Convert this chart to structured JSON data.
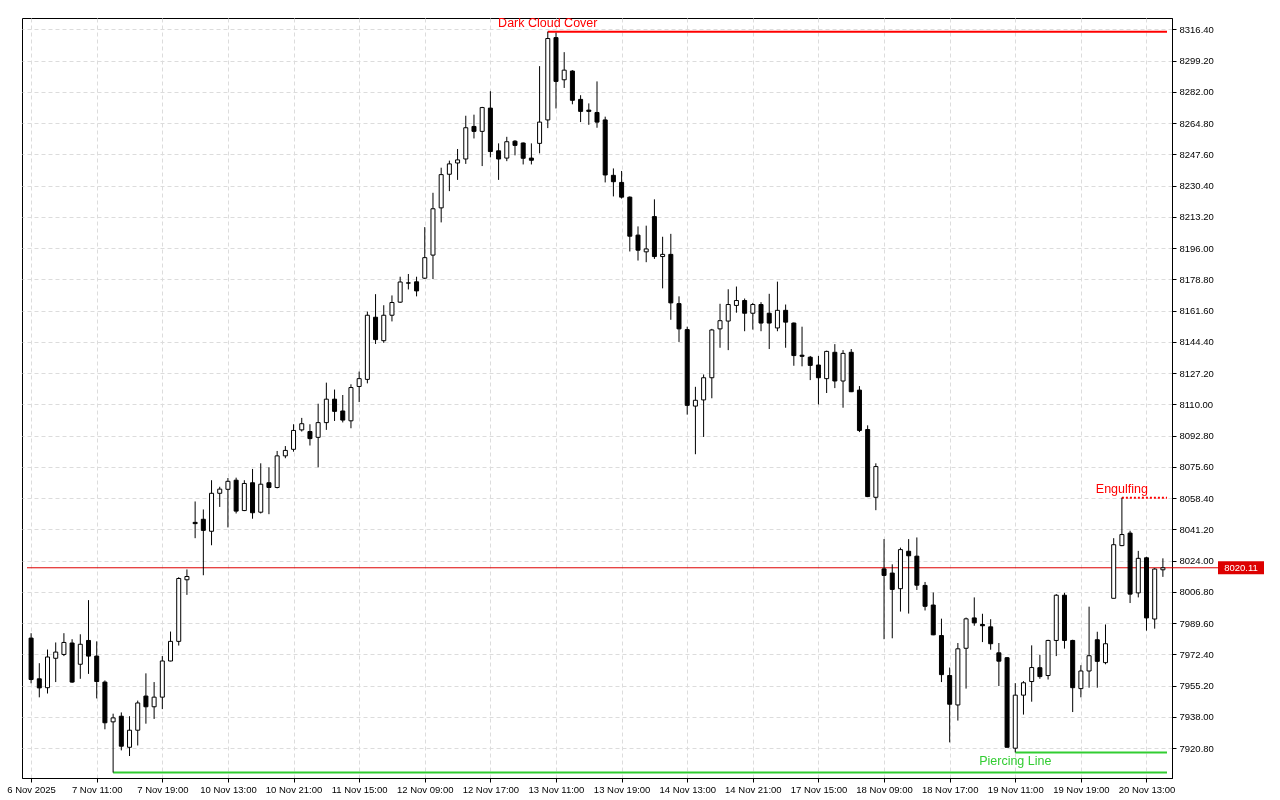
{
  "chart_data": {
    "type": "candlestick",
    "categories": [
      "6 Nov 2025",
      null,
      null,
      null,
      null,
      null,
      null,
      null,
      "7 Nov 11:00",
      null,
      null,
      null,
      null,
      null,
      null,
      null,
      "7 Nov 19:00",
      null,
      null,
      null,
      null,
      null,
      null,
      null,
      "10 Nov 13:00",
      null,
      null,
      null,
      null,
      null,
      null,
      null,
      "10 Nov 21:00",
      null,
      null,
      null,
      null,
      null,
      null,
      null,
      "11 Nov 15:00",
      null,
      null,
      null,
      null,
      null,
      null,
      null,
      "12 Nov 09:00",
      null,
      null,
      null,
      null,
      null,
      null,
      null,
      "12 Nov 17:00",
      null,
      null,
      null,
      null,
      null,
      null,
      null,
      "13 Nov 11:00",
      null,
      null,
      null,
      null,
      null,
      null,
      null,
      "13 Nov 19:00",
      null,
      null,
      null,
      null,
      null,
      null,
      null,
      "14 Nov 13:00",
      null,
      null,
      null,
      null,
      null,
      null,
      null,
      "14 Nov 21:00",
      null,
      null,
      null,
      null,
      null,
      null,
      null,
      "17 Nov 15:00",
      null,
      null,
      null,
      null,
      null,
      null,
      null,
      "18 Nov 09:00",
      null,
      null,
      null,
      null,
      null,
      null,
      null,
      "18 Nov 17:00",
      null,
      null,
      null,
      null,
      null,
      null,
      null,
      "19 Nov 11:00",
      null,
      null,
      null,
      null,
      null,
      null,
      null,
      "19 Nov 19:00",
      null,
      null,
      null,
      null,
      null,
      null,
      null,
      "20 Nov 13:00",
      null,
      null
    ],
    "ohlc": [
      [
        7981.4,
        7984.1,
        7956.5,
        7958.6
      ],
      [
        7959.0,
        7967.6,
        7948.8,
        7954.0
      ],
      [
        7954.1,
        7975.1,
        7950.9,
        7971.0
      ],
      [
        7970.3,
        7979.0,
        7957.2,
        7973.7
      ],
      [
        7972.4,
        7984.1,
        7971.5,
        7979.0
      ],
      [
        7978.7,
        7980.8,
        7956.8,
        7957.2
      ],
      [
        7967.0,
        7983.5,
        7959.0,
        7978.0
      ],
      [
        7980.1,
        8002.3,
        7961.7,
        7971.5
      ],
      [
        7971.5,
        7979.6,
        7948.2,
        7957.5
      ],
      [
        7957.2,
        7958.1,
        7931.2,
        7934.8
      ],
      [
        7935.3,
        7939.8,
        7907.4,
        7937.5
      ],
      [
        7938.4,
        7940.5,
        7919.6,
        7921.9
      ],
      [
        7921.3,
        7938.4,
        7916.5,
        7930.7
      ],
      [
        7930.7,
        7947.0,
        7922.3,
        7945.7
      ],
      [
        7949.5,
        7962.0,
        7934.3,
        7943.6
      ],
      [
        7943.6,
        7957.2,
        7936.9,
        7948.9
      ],
      [
        7948.9,
        7971.5,
        7942.3,
        7968.8
      ],
      [
        7968.8,
        7985.0,
        7968.6,
        7979.6
      ],
      [
        7979.6,
        8014.9,
        7977.3,
        8014.2
      ],
      [
        8013.5,
        8019.2,
        8005.2,
        8015.3
      ],
      [
        8045.1,
        8056.6,
        8036.4,
        8044.4
      ],
      [
        8046.8,
        8052.2,
        8016.0,
        8040.7
      ],
      [
        8040.2,
        8068.3,
        8032.5,
        8061.1
      ],
      [
        8061.1,
        8064.7,
        8053.6,
        8063.4
      ],
      [
        8063.3,
        8069.5,
        8042.3,
        8067.7
      ],
      [
        8068.3,
        8069.7,
        8050.0,
        8051.3
      ],
      [
        8051.6,
        8068.3,
        8051.3,
        8066.5
      ],
      [
        8066.9,
        8074.5,
        8047.1,
        8050.4
      ],
      [
        8050.7,
        8077.6,
        8050.0,
        8066.1
      ],
      [
        8066.9,
        8075.4,
        8049.6,
        8064.3
      ],
      [
        8064.3,
        8084.4,
        8063.8,
        8081.7
      ],
      [
        8081.7,
        8087.1,
        8080.4,
        8084.7
      ],
      [
        8085.3,
        8099.1,
        8084.0,
        8095.7
      ],
      [
        8096.0,
        8102.6,
        8095.1,
        8099.4
      ],
      [
        8095.1,
        8099.1,
        8087.4,
        8091.2
      ],
      [
        8091.9,
        8110.4,
        8075.4,
        8100.0
      ],
      [
        8100.0,
        8122.0,
        8096.0,
        8112.9
      ],
      [
        8112.9,
        8118.2,
        8100.9,
        8106.2
      ],
      [
        8106.4,
        8115.2,
        8100.1,
        8101.4
      ],
      [
        8101.0,
        8121.1,
        8096.9,
        8119.3
      ],
      [
        8119.9,
        8128.1,
        8111.3,
        8124.2
      ],
      [
        8123.8,
        8161.1,
        8121.6,
        8159.1
      ],
      [
        8158.0,
        8170.7,
        8143.3,
        8145.7
      ],
      [
        8145.1,
        8164.6,
        8143.9,
        8159.1
      ],
      [
        8159.1,
        8170.0,
        8155.7,
        8166.1
      ],
      [
        8166.3,
        8180.3,
        8165.9,
        8177.4
      ],
      [
        8176.9,
        8181.8,
        8173.3,
        8176.8
      ],
      [
        8177.5,
        8180.3,
        8169.5,
        8172.5
      ],
      [
        8179.5,
        8207.6,
        8179.0,
        8190.8
      ],
      [
        8192.2,
        8226.5,
        8179.0,
        8217.7
      ],
      [
        8218.2,
        8240.3,
        8210.2,
        8236.5
      ],
      [
        8236.7,
        8244.2,
        8227.4,
        8242.4
      ],
      [
        8242.9,
        8250.6,
        8233.6,
        8244.6
      ],
      [
        8245.1,
        8268.9,
        8242.4,
        8262.3
      ],
      [
        8263.0,
        8269.5,
        8256.4,
        8260.3
      ],
      [
        8260.3,
        8273.8,
        8241.2,
        8273.4
      ],
      [
        8273.1,
        8282.4,
        8246.0,
        8249.2
      ],
      [
        8249.6,
        8253.7,
        8233.6,
        8245.1
      ],
      [
        8245.6,
        8257.3,
        8243.9,
        8254.6
      ],
      [
        8254.9,
        8255.5,
        8247.1,
        8252.6
      ],
      [
        8253.9,
        8254.2,
        8242.1,
        8245.5
      ],
      [
        8245.6,
        8253.7,
        8242.1,
        8244.4
      ],
      [
        8253.7,
        8296.2,
        8248.2,
        8265.4
      ],
      [
        8266.6,
        8315.2,
        8262.1,
        8311.4
      ],
      [
        8311.9,
        8314.6,
        8272.9,
        8287.8
      ],
      [
        8288.7,
        8303.9,
        8284.2,
        8294.0
      ],
      [
        8293.5,
        8294.0,
        8275.2,
        8277.4
      ],
      [
        8277.9,
        8280.2,
        8265.4,
        8271.3
      ],
      [
        8272.0,
        8275.7,
        8263.9,
        8271.3
      ],
      [
        8270.7,
        8287.8,
        8262.3,
        8265.4
      ],
      [
        8266.6,
        8268.4,
        8232.2,
        8236.3
      ],
      [
        8236.1,
        8239.9,
        8224.5,
        8232.6
      ],
      [
        8232.2,
        8238.5,
        8223.3,
        8224.1
      ],
      [
        8224.1,
        8224.5,
        8194.2,
        8202.6
      ],
      [
        8203.2,
        8208.0,
        8189.2,
        8194.9
      ],
      [
        8194.0,
        8208.4,
        8188.3,
        8195.6
      ],
      [
        8213.4,
        8222.9,
        8190.1,
        8191.4
      ],
      [
        8191.4,
        8202.3,
        8173.9,
        8192.6
      ],
      [
        8192.6,
        8203.9,
        8156.6,
        8165.9
      ],
      [
        8165.5,
        8169.5,
        8144.4,
        8151.6
      ],
      [
        8151.2,
        8152.8,
        8104.4,
        8109.5
      ],
      [
        8109.1,
        8119.7,
        8082.6,
        8112.3
      ],
      [
        8112.5,
        8126.5,
        8092.1,
        8124.7
      ],
      [
        8124.7,
        8151.6,
        8113.4,
        8151.0
      ],
      [
        8151.6,
        8165.4,
        8141.2,
        8156.1
      ],
      [
        8155.9,
        8173.4,
        8139.9,
        8165.0
      ],
      [
        8164.5,
        8174.9,
        8160.5,
        8167.2
      ],
      [
        8167.2,
        8168.3,
        8150.3,
        8160.2
      ],
      [
        8160.2,
        8165.9,
        8151.2,
        8165.0
      ],
      [
        8165.0,
        8166.3,
        8150.3,
        8154.8
      ],
      [
        8160.2,
        8170.9,
        8140.5,
        8154.8
      ],
      [
        8152.1,
        8177.6,
        8150.3,
        8161.8
      ],
      [
        8161.8,
        8165.0,
        8141.2,
        8155.3
      ],
      [
        8154.8,
        8155.1,
        8131.3,
        8136.9
      ],
      [
        8137.1,
        8152.8,
        8131.0,
        8136.5
      ],
      [
        8136.0,
        8136.7,
        8123.4,
        8131.5
      ],
      [
        8131.7,
        8136.7,
        8110.0,
        8124.7
      ],
      [
        8124.2,
        8139.6,
        8116.3,
        8139.2
      ],
      [
        8138.7,
        8143.2,
        8119.0,
        8122.9
      ],
      [
        8122.9,
        8139.9,
        8108.2,
        8138.1
      ],
      [
        8138.7,
        8140.5,
        8116.8,
        8117.0
      ],
      [
        8117.9,
        8120.1,
        8094.8,
        8095.7
      ],
      [
        8096.2,
        8098.5,
        8059.0,
        8059.3
      ],
      [
        8058.9,
        8077.6,
        8051.8,
        8075.8
      ],
      [
        8019.5,
        8035.9,
        7980.8,
        8015.9
      ],
      [
        8017.2,
        8022.0,
        7981.3,
        8008.2
      ],
      [
        8008.6,
        8031.2,
        7996.0,
        8030.1
      ],
      [
        8029.2,
        8035.9,
        7994.9,
        8026.7
      ],
      [
        8026.5,
        8036.8,
        8007.9,
        8010.5
      ],
      [
        8010.4,
        8012.3,
        7996.6,
        7998.9
      ],
      [
        7999.6,
        8006.5,
        7983.0,
        7983.2
      ],
      [
        7982.8,
        7992.1,
        7957.2,
        7961.3
      ],
      [
        7960.8,
        7965.2,
        7924.0,
        7945.0
      ],
      [
        7944.6,
        7978.7,
        7936.0,
        7975.5
      ],
      [
        7975.8,
        7992.7,
        7953.6,
        7992.0
      ],
      [
        7992.5,
        8003.8,
        7988.2,
        7989.8
      ],
      [
        7988.9,
        7994.8,
        7979.2,
        7988.2
      ],
      [
        7987.6,
        7991.8,
        7975.0,
        7978.3
      ],
      [
        7973.3,
        7978.7,
        7955.0,
        7968.7
      ],
      [
        7970.6,
        7971.0,
        7921.3,
        7921.3
      ],
      [
        7920.8,
        7956.6,
        7918.5,
        7950.0
      ],
      [
        7950.0,
        7957.7,
        7939.3,
        7956.8
      ],
      [
        7957.5,
        7977.4,
        7946.4,
        7965.2
      ],
      [
        7965.1,
        7972.2,
        7959.0,
        7960.2
      ],
      [
        7960.8,
        7980.5,
        7958.6,
        7980.1
      ],
      [
        7980.1,
        8005.6,
        7971.5,
        8005.0
      ],
      [
        8005.0,
        8006.3,
        7975.6,
        7980.1
      ],
      [
        7980.1,
        7980.5,
        7940.7,
        7954.1
      ],
      [
        7953.6,
        7966.5,
        7948.8,
        7963.3
      ],
      [
        7963.3,
        7998.7,
        7954.1,
        7971.7
      ],
      [
        7980.5,
        7984.9,
        7954.1,
        7968.6
      ],
      [
        7967.9,
        7988.9,
        7967.0,
        7978.3
      ],
      [
        8003.3,
        8036.4,
        8003.3,
        8032.8
      ],
      [
        8032.3,
        8058.7,
        8032.0,
        8038.4
      ],
      [
        8039.2,
        8040.5,
        8000.7,
        8005.6
      ],
      [
        8006.3,
        8029.4,
        8003.8,
        8025.3
      ],
      [
        8025.6,
        8026.2,
        7985.5,
        7992.5
      ],
      [
        7991.9,
        8019.9,
        7986.6,
        8019.4
      ],
      [
        8019.0,
        8025.3,
        8015.1,
        8020.11
      ]
    ],
    "colors": [
      "#000000",
      "#000000",
      "#ffffff",
      "#ffffff",
      "#ffffff",
      "#000000",
      "#ffffff",
      "#000000",
      "#000000",
      "#000000",
      "#ffffff",
      "#000000",
      "#ffffff",
      "#ffffff",
      "#000000",
      "#ffffff",
      "#ffffff",
      "#ffffff",
      "#ffffff",
      "#ffffff",
      "#000000",
      "#000000",
      "#ffffff",
      "#ffffff",
      "#ffffff",
      "#000000",
      "#ffffff",
      "#000000",
      "#ffffff",
      "#000000",
      "#ffffff",
      "#ffffff",
      "#ffffff",
      "#ffffff",
      "#000000",
      "#ffffff",
      "#ffffff",
      "#000000",
      "#000000",
      "#ffffff",
      "#ffffff",
      "#ffffff",
      "#000000",
      "#ffffff",
      "#ffffff",
      "#ffffff",
      "#000000",
      "#000000",
      "#ffffff",
      "#ffffff",
      "#ffffff",
      "#ffffff",
      "#ffffff",
      "#ffffff",
      "#000000",
      "#ffffff",
      "#000000",
      "#000000",
      "#ffffff",
      "#000000",
      "#000000",
      "#000000",
      "#ffffff",
      "#ffffff",
      "#000000",
      "#ffffff",
      "#000000",
      "#000000",
      "#000000",
      "#000000",
      "#000000",
      "#000000",
      "#000000",
      "#000000",
      "#000000",
      "#ffffff",
      "#000000",
      "#ffffff",
      "#000000",
      "#000000",
      "#000000",
      "#ffffff",
      "#ffffff",
      "#ffffff",
      "#ffffff",
      "#ffffff",
      "#ffffff",
      "#000000",
      "#ffffff",
      "#000000",
      "#000000",
      "#ffffff",
      "#000000",
      "#000000",
      "#000000",
      "#000000",
      "#000000",
      "#ffffff",
      "#000000",
      "#ffffff",
      "#000000",
      "#000000",
      "#000000",
      "#ffffff",
      "#000000",
      "#000000",
      "#ffffff",
      "#000000",
      "#000000",
      "#000000",
      "#000000",
      "#000000",
      "#000000",
      "#ffffff",
      "#ffffff",
      "#000000",
      "#000000",
      "#000000",
      "#000000",
      "#000000",
      "#ffffff",
      "#ffffff",
      "#ffffff",
      "#000000",
      "#ffffff",
      "#ffffff",
      "#000000",
      "#000000",
      "#ffffff",
      "#ffffff",
      "#000000",
      "#ffffff",
      "#ffffff",
      "#ffffff",
      "#000000",
      "#ffffff",
      "#000000",
      "#ffffff",
      "#ffffff"
    ],
    "color": "#000000",
    "ylim": [
      7904.4,
      8322.7
    ],
    "yticks": [
      {
        "value": 7920.8,
        "label": "7920.80"
      },
      {
        "value": 7938.0,
        "label": "7938.00"
      },
      {
        "value": 7955.2,
        "label": "7955.20"
      },
      {
        "value": 7972.4,
        "label": "7972.40"
      },
      {
        "value": 7989.6,
        "label": "7989.60"
      },
      {
        "value": 8006.8,
        "label": "8006.80"
      },
      {
        "value": 8024.0,
        "label": "8024.00"
      },
      {
        "value": 8041.2,
        "label": "8041.20"
      },
      {
        "value": 8058.4,
        "label": "8058.40"
      },
      {
        "value": 8075.6,
        "label": "8075.60"
      },
      {
        "value": 8092.8,
        "label": "8092.80"
      },
      {
        "value": 8110.0,
        "label": "8110.00"
      },
      {
        "value": 8127.2,
        "label": "8127.20"
      },
      {
        "value": 8144.4,
        "label": "8144.40"
      },
      {
        "value": 8161.6,
        "label": "8161.60"
      },
      {
        "value": 8178.8,
        "label": "8178.80"
      },
      {
        "value": 8196.0,
        "label": "8196.00"
      },
      {
        "value": 8213.2,
        "label": "8213.20"
      },
      {
        "value": 8230.4,
        "label": "8230.40"
      },
      {
        "value": 8247.6,
        "label": "8247.60"
      },
      {
        "value": 8264.8,
        "label": "8264.80"
      },
      {
        "value": 8282.0,
        "label": "8282.00"
      },
      {
        "value": 8299.2,
        "label": "8299.20"
      },
      {
        "value": 8316.4,
        "label": "8316.40"
      }
    ],
    "grid": true,
    "ref_lines": [
      {
        "axis": "y",
        "value": 8020.11,
        "label": "8020.11",
        "color": "#dd0000"
      },
      {
        "axis": "y",
        "value": 8315.2,
        "label": "Dark Cloud Cover",
        "color": "#ff0000"
      },
      {
        "axis": "y",
        "value": 8058.7,
        "label": "Engulfing",
        "color": "#ff0000",
        "line_style": "dotted"
      },
      {
        "axis": "y",
        "value": 7918.5,
        "label": "Piercing Line",
        "color": "#32cd32"
      },
      {
        "axis": "y",
        "value": 7907.4,
        "color": "#32cd32"
      }
    ]
  }
}
